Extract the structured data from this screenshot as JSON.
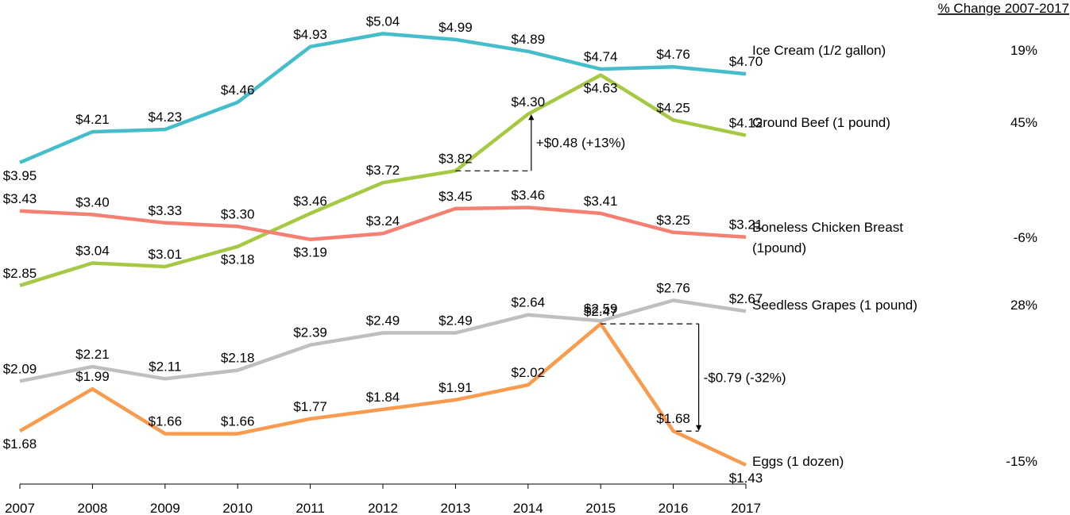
{
  "chart_data": {
    "type": "line",
    "x": [
      "2007",
      "2008",
      "2009",
      "2010",
      "2011",
      "2012",
      "2013",
      "2014",
      "2015",
      "2016",
      "2017"
    ],
    "change_header": "% Change 2007-2017",
    "grid": false,
    "legend": "none",
    "series": [
      {
        "name": "Ice Cream (1/2 gallon)",
        "color": "#45BDCB",
        "values": [
          3.95,
          4.21,
          4.23,
          4.46,
          4.93,
          5.04,
          4.99,
          4.89,
          4.74,
          4.76,
          4.7
        ],
        "labels": [
          "$3.95",
          "$4.21",
          "$4.23",
          "$4.46",
          "$4.93",
          "$5.04",
          "$4.99",
          "$4.89",
          "$4.74",
          "$4.76",
          "$4.70"
        ],
        "change": "19%"
      },
      {
        "name": "Ground Beef (1 pound)",
        "color": "#A6C944",
        "values": [
          2.85,
          3.04,
          3.01,
          3.18,
          3.46,
          3.72,
          3.82,
          4.3,
          4.63,
          4.25,
          4.12
        ],
        "labels": [
          "$2.85",
          "$3.04",
          "$3.01",
          "$3.18",
          "$3.46",
          "$3.72",
          "$3.82",
          "$4.30",
          "$4.63",
          "$4.25",
          "$4.12"
        ],
        "change": "45%"
      },
      {
        "name": "Boneless Chicken Breast",
        "name_line2": "(1pound)",
        "color": "#F47F73",
        "values": [
          3.43,
          3.4,
          3.33,
          3.3,
          3.19,
          3.24,
          3.45,
          3.46,
          3.41,
          3.25,
          3.21
        ],
        "labels": [
          "$3.43",
          "$3.40",
          "$3.33",
          "$3.30",
          "$3.19",
          "$3.24",
          "$3.45",
          "$3.46",
          "$3.41",
          "$3.25",
          "$3.21"
        ],
        "change": "-6%"
      },
      {
        "name": "Seedless Grapes (1 pound)",
        "color": "#BFBFBF",
        "values": [
          2.09,
          2.21,
          2.11,
          2.18,
          2.39,
          2.49,
          2.49,
          2.64,
          2.59,
          2.76,
          2.67
        ],
        "labels": [
          "$2.09",
          "$2.21",
          "$2.11",
          "$2.18",
          "$2.39",
          "$2.49",
          "$2.49",
          "$2.64",
          "$2.59",
          "$2.76",
          "$2.67"
        ],
        "change": "28%"
      },
      {
        "name": "Eggs (1 dozen)",
        "color": "#F99B4E",
        "values": [
          1.68,
          1.99,
          1.66,
          1.66,
          1.77,
          1.84,
          1.91,
          2.02,
          2.47,
          1.68,
          1.43
        ],
        "labels": [
          "$1.68",
          "$1.99",
          "$1.66",
          "$1.66",
          "$1.77",
          "$1.84",
          "$1.91",
          "$2.02",
          "$2.47",
          "$1.68",
          "$1.43"
        ],
        "change": "-15%"
      }
    ],
    "annotations": [
      {
        "text": "+$0.48 (+13%)",
        "series": "Ground Beef (1 pound)",
        "from_year": "2013",
        "to_year": "2014"
      },
      {
        "text": "-$0.79 (-32%)",
        "series": "Eggs (1 dozen)",
        "from_year": "2015",
        "to_year": "2016"
      }
    ]
  }
}
